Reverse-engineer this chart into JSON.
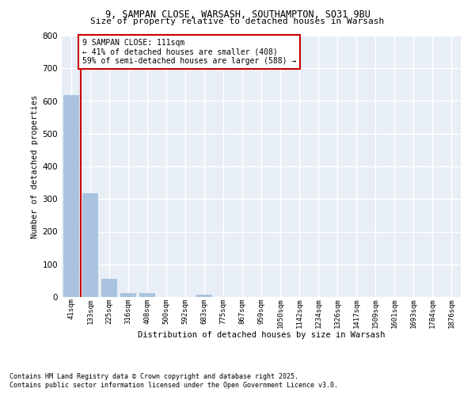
{
  "title_line1": "9, SAMPAN CLOSE, WARSASH, SOUTHAMPTON, SO31 9BU",
  "title_line2": "Size of property relative to detached houses in Warsash",
  "xlabel": "Distribution of detached houses by size in Warsash",
  "ylabel": "Number of detached properties",
  "categories": [
    "41sqm",
    "133sqm",
    "225sqm",
    "316sqm",
    "408sqm",
    "500sqm",
    "592sqm",
    "683sqm",
    "775sqm",
    "867sqm",
    "959sqm",
    "1050sqm",
    "1142sqm",
    "1234sqm",
    "1326sqm",
    "1417sqm",
    "1509sqm",
    "1601sqm",
    "1693sqm",
    "1784sqm",
    "1876sqm"
  ],
  "values": [
    619,
    318,
    56,
    11,
    12,
    0,
    0,
    7,
    0,
    0,
    0,
    0,
    0,
    0,
    0,
    0,
    0,
    0,
    0,
    0,
    0
  ],
  "bar_color": "#aac4e0",
  "vline_color": "#cc0000",
  "annotation_text": "9 SAMPAN CLOSE: 111sqm\n← 41% of detached houses are smaller (408)\n59% of semi-detached houses are larger (588) →",
  "annotation_box_color": "#ffffff",
  "annotation_box_edge": "#cc0000",
  "ylim": [
    0,
    800
  ],
  "yticks": [
    0,
    100,
    200,
    300,
    400,
    500,
    600,
    700,
    800
  ],
  "background_color": "#e8eef5",
  "grid_color": "#ffffff",
  "footnote_line1": "Contains HM Land Registry data © Crown copyright and database right 2025.",
  "footnote_line2": "Contains public sector information licensed under the Open Government Licence v3.0."
}
